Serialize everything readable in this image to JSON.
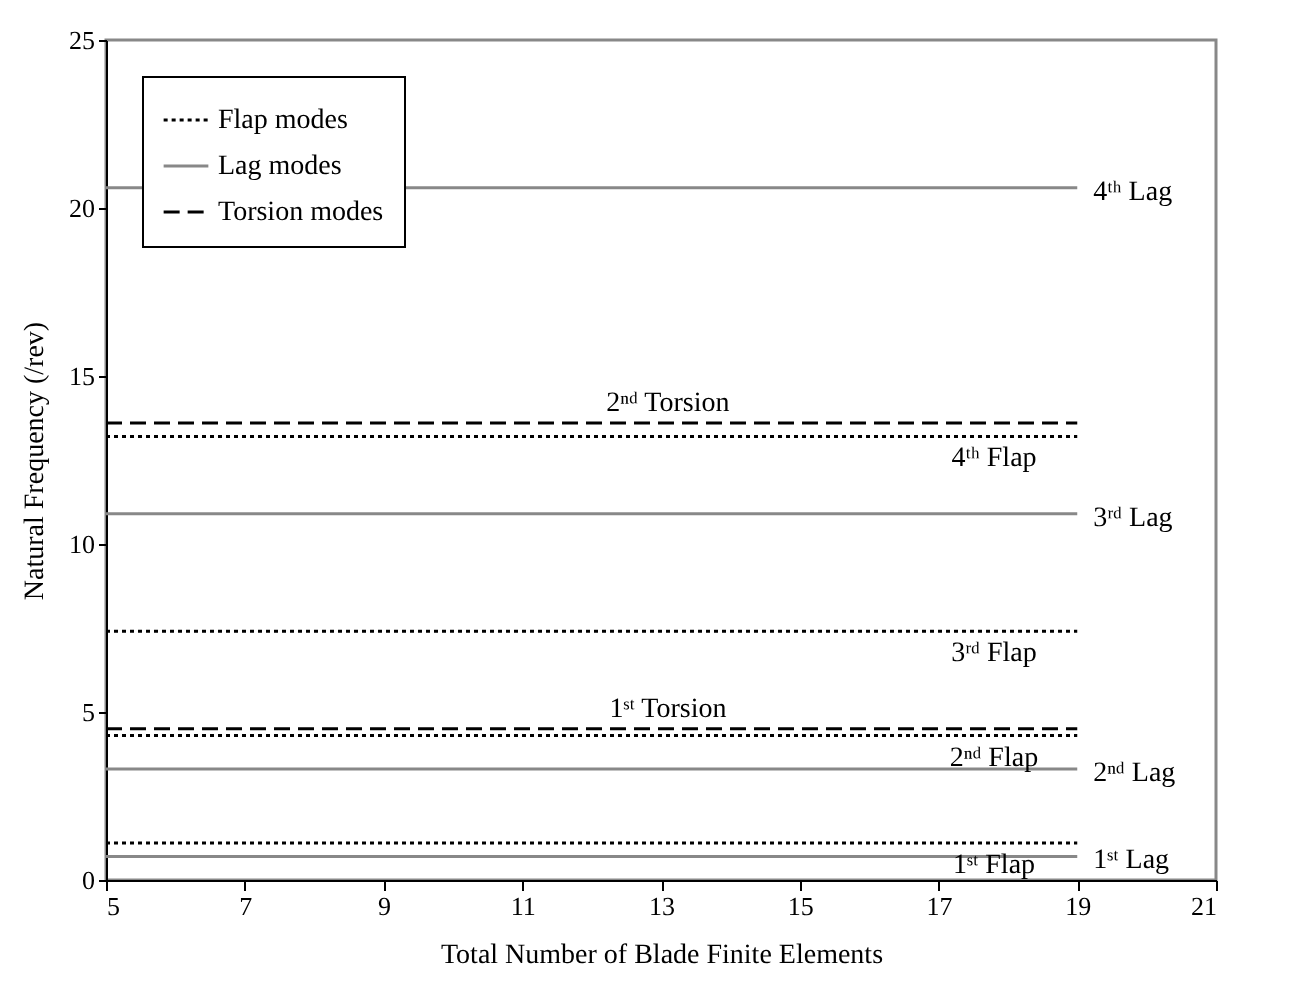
{
  "chart_data": {
    "type": "line",
    "xlabel": "Total Number of Blade Finite Elements",
    "ylabel": "Natural Frequency (/rev)",
    "x": [
      5,
      19
    ],
    "series": [
      {
        "name": "Flap modes",
        "color": "#000000",
        "line_style": "dotted",
        "values": [
          1.1,
          1.1
        ]
      },
      {
        "color": "#000000",
        "line_style": "dotted",
        "values": [
          4.3,
          4.3
        ]
      },
      {
        "color": "#000000",
        "line_style": "dotted",
        "values": [
          7.4,
          7.4
        ]
      },
      {
        "color": "#000000",
        "line_style": "dotted",
        "values": [
          13.2,
          13.2
        ]
      },
      {
        "name": "Lag modes",
        "color": "#888888",
        "line_style": "solid",
        "values": [
          0.7,
          0.7
        ]
      },
      {
        "color": "#888888",
        "line_style": "solid",
        "values": [
          3.3,
          3.3
        ]
      },
      {
        "color": "#888888",
        "line_style": "solid",
        "values": [
          10.9,
          10.9
        ]
      },
      {
        "color": "#888888",
        "line_style": "solid",
        "values": [
          20.6,
          20.6
        ]
      },
      {
        "name": "Torsion modes",
        "color": "#000000",
        "line_style": "dashed",
        "values": [
          4.5,
          4.5
        ]
      },
      {
        "color": "#000000",
        "line_style": "dashed",
        "values": [
          13.6,
          13.6
        ]
      }
    ],
    "annotations": [
      {
        "text": "1ˢᵗ Flap",
        "x": 17.8,
        "y": 1.1
      },
      {
        "text": "2ⁿᵈ Flap",
        "x": 17.8,
        "y": 4.3
      },
      {
        "text": "3ʳᵈ Flap",
        "x": 17.8,
        "y": 7.4
      },
      {
        "text": "4ᵗʰ Flap",
        "x": 17.8,
        "y": 13.2
      },
      {
        "text": "1ˢᵗ Lag",
        "x": 19,
        "y": 0.7
      },
      {
        "text": "2ⁿᵈ Lag",
        "x": 19,
        "y": 3.3
      },
      {
        "text": "3ʳᵈ Lag",
        "x": 19,
        "y": 10.9
      },
      {
        "text": "4ᵗʰ Lag",
        "x": 19,
        "y": 20.6
      },
      {
        "text": "1ˢᵗ Torsion",
        "x": 13.1,
        "y": 4.5
      },
      {
        "text": "2ⁿᵈ Torsion",
        "x": 13.1,
        "y": 13.6
      }
    ],
    "xlim": [
      5,
      21
    ],
    "xticks": [
      5,
      7,
      9,
      11,
      13,
      15,
      17,
      19,
      21
    ],
    "ylim": [
      0,
      25
    ],
    "yticks": [
      0,
      5,
      10,
      15,
      20,
      25
    ],
    "grid": false,
    "legend": "top left"
  }
}
